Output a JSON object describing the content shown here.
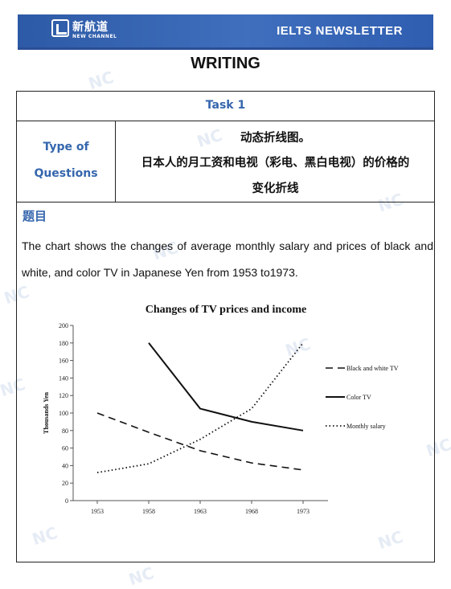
{
  "header": {
    "logo_cn": "新航道",
    "logo_en": "NEW CHANNEL",
    "newsletter_title": "IELTS NEWSLETTER",
    "brand_color": "#2d5aa6"
  },
  "section_title": "WRITING",
  "task": {
    "label": "Task 1",
    "type_label_line1": "Type of",
    "type_label_line2": "Questions",
    "type_line1": "动态折线图。",
    "type_line2": "日本人的月工资和电视（彩电、黑白电视）的价格的",
    "type_line3": "变化折线"
  },
  "question": {
    "heading": "题目",
    "text": "The chart shows the changes of average monthly salary and prices of black and white, and color TV in Japanese Yen from 1953 to1973."
  },
  "chart_data": {
    "type": "line",
    "title": "Changes of TV prices and income",
    "xlabel": "",
    "ylabel": "Thousands Yen",
    "x": [
      "1953",
      "1958",
      "1963",
      "1968",
      "1973"
    ],
    "ylim": [
      0,
      200
    ],
    "yticks": [
      0,
      20,
      40,
      60,
      80,
      100,
      120,
      140,
      160,
      180,
      200
    ],
    "grid": false,
    "legend": "right",
    "series": [
      {
        "name": "Black and white TV",
        "style": "dashed",
        "values": [
          100,
          78,
          57,
          43,
          35
        ]
      },
      {
        "name": "Color TV",
        "style": "solid",
        "values": [
          null,
          180,
          105,
          90,
          80
        ]
      },
      {
        "name": "Monthly salary",
        "style": "dotted",
        "values": [
          32,
          42,
          70,
          105,
          180
        ]
      }
    ]
  }
}
